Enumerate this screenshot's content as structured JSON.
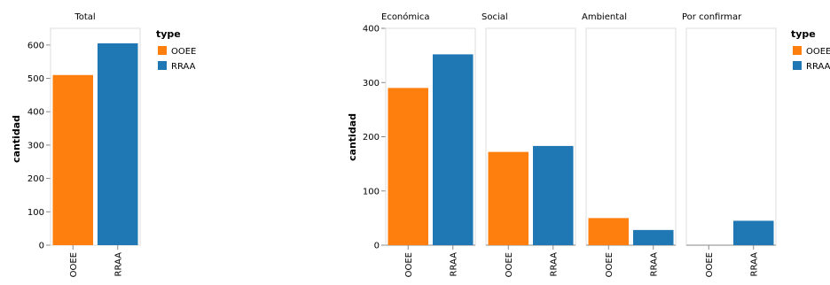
{
  "chart_data": [
    {
      "type": "bar",
      "title": "Total",
      "categories": [
        "OOEE",
        "RRAA"
      ],
      "values": [
        510,
        605
      ],
      "colors": [
        "#ff7f0e",
        "#1f77b4"
      ],
      "ylabel": "cantidad",
      "ylim": [
        0,
        650
      ],
      "yticks": [
        0,
        100,
        200,
        300,
        400,
        500,
        600
      ],
      "legend": {
        "title": "type",
        "entries": [
          "OOEE",
          "RRAA"
        ],
        "colors": [
          "#ff7f0e",
          "#1f77b4"
        ],
        "placement": "right"
      }
    },
    {
      "type": "bar",
      "ylabel": "cantidad",
      "ylim": [
        0,
        400
      ],
      "yticks": [
        0,
        100,
        200,
        300,
        400
      ],
      "categories": [
        "OOEE",
        "RRAA"
      ],
      "colors": [
        "#ff7f0e",
        "#1f77b4"
      ],
      "facets": [
        {
          "title": "Económica",
          "values": [
            290,
            352
          ]
        },
        {
          "title": "Social",
          "values": [
            172,
            183
          ]
        },
        {
          "title": "Ambiental",
          "values": [
            50,
            28
          ]
        },
        {
          "title": "Por confirmar",
          "values": [
            0,
            45
          ]
        }
      ],
      "legend": {
        "title": "type",
        "entries": [
          "OOEE",
          "RRAA"
        ],
        "colors": [
          "#ff7f0e",
          "#1f77b4"
        ],
        "placement": "right"
      }
    }
  ]
}
